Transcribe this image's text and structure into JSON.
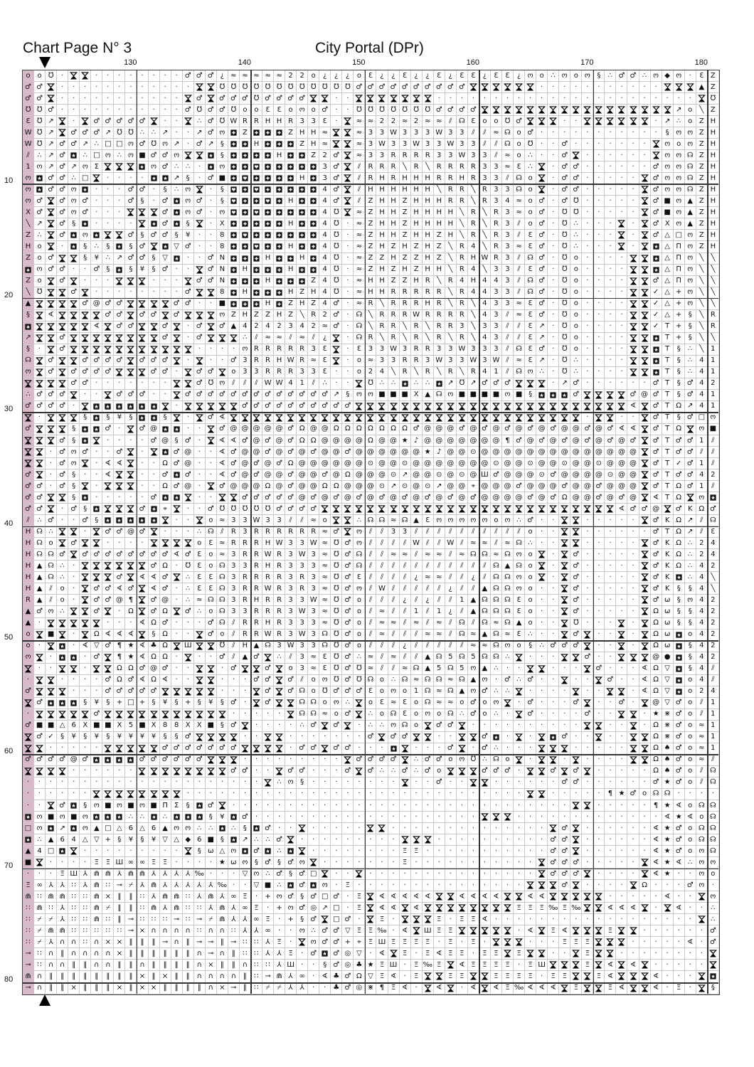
{
  "header": {
    "page_title": "Chart Page N° 3",
    "pattern_title": "City Portal (DPr)"
  },
  "colors": {
    "overlap_column": "#d8b9c7",
    "grid_line": "#c9c9c9",
    "major_line": "#333333"
  },
  "chart_data": {
    "type": "table",
    "column_labels": [
      130,
      140,
      150,
      160,
      170,
      180
    ],
    "row_labels": [
      10,
      20,
      30,
      40,
      50,
      60,
      70,
      80
    ],
    "center_markers": [
      "top-arrow",
      "bottom-arrow"
    ],
    "rows": [
      "oo℧·⧗⧗········♂♂♂¿≈≈≈≈≈22o¿¿¿oƐ¿¿Ɛ¿¿Ɛ¿ƐƐ¿ƐƐ¿ოo∴ოoო§∴♂♂∴ო◆ო·ƐZ",
      "♂♂⧗············⧗⧗℧℧℧℧℧℧℧℧℧℧℧℧♂♂♂♂♂♂♂♂♂♂⧗⧗⧗⧗⧗⧗···········⧗⧗⧗▲Z",
      "♂♂⧗···········⧗♂⧗♂♂♂℧♂♂♂♂⧗⧗··⧗⧗⧗⧗⧗⧗⧗·······················⧗℧4Z",
      "℧℧♂···········♂℧♂♂℧ooƐƐoოo♂··℧℧℧℧℧℧℧♂♂♂♂⧗⧗⧗⧗⧗⧗⧗⧗⧗⧗⧗⧗⧗⧗⧗⧗⧗↗o╲Z",
      "Ɛ℧↗⧗·⧗♂♂♂♂♂⧗··⧗∴♂℧WRRHHR33Ɛ·⧗≈≈22≈2≈≈⫽☊Ɛoo℧♂⧗⧗⧗··⧗⧗⧗⧗⧗⧗·↗∴oZH",
      "W℧↗⧗♂♂♂↗℧℧∴∴↗··↗♂ო⊞Z⊞⊞⊞ZHH≈⧗⧗≈33W333W33⫽⫽≈☊o♂···········§ოოZH",
      "W℧↗♂♂↗∴□□ო♂℧ო↗·♂↗§⊞⊞H⊞⊞⊞ZH≈⧗⧗≈3W33W33W33⫽⫽☊o℧··♂·······⧗ოoოZH",
      "⫽∴↗♂⊡∴□ო∴ო■♂♂ო⧗⧗⊡§⊞⊞⊞⊞H⊞⊞Z2♂⧗≈33RRRR33W33⫽≈o∴··♂⧗······⧗ოო☊ZH",
      "1ო↗♂↗ოΣ⧗⧗⧗⊡ო♂∴∴·⊡ო⊞⊞◘⊞⊞⊞⊞⊞3♂⧗⫽RRR╲R╲RRRR33≈Ɛ∴⧗·♂♂······♂ოო☊ZH",
      "ო⊡♂♂∴□⧗····⊡⊡↗§·♂■⊞◘⊞⊞⊞⊞H⊞3♂⧗⫽RHRHHHRRHR33⫽☊o⧗·♂♂·····⧗♂ოო☊ZH",
      "ო⊡♂♂ო⊡···♂♂·§∴ო⧗·§◘⊞◘⊞⊞⊞⊞⊞4♂⧗⫽HHHHHH╲RR╲R33☊o⧗·♂♂·····⧗♂ოო☊ZH",
      "ო♂⧗♂ო♂···♂§·♂⊡ო♂·§◘⊞⊞◘⊞H⊞⊞4♂⧗⫽ZHHZHHHRR╲R34≈o♂·♂℧·····⧗♂■ო▲ZH",
      "X♂⧗♂ო♂···⧗⧗⧗♂⊡ო♂·ო◘⊞◘⊞⊞⊞⊞⊞4℧⧗≈ZHHZHHHH╲R╲R3≈o♂·℧℧·····⧗♂■ო▲ZH",
      "╲↗⧗♂§⊡····⧗⊡♂⊡§⧗·X⊞⊞⊞⊞⊞H⊞⊞4℧·≈ZHHZHHHH╲R╲R3⫽o♂·℧∴···⧗·⧗♂Xო▲ZH",
      "Z∴⧗♂⊡ო⊡⧗⧗♂§♂♂§¥··8⊞◘⊞⊞⊞⊞⊞⊞4℧·≈ZHHZHHZH╲R╲R3⫽Ɛ♂·℧∴···⧗·⧗♂△□ოZH",
      "Ho⧗·⊡§∴§⊡§♂⧗⊡▽♂··8⊞⊞◘⊞⊞H⊞⊞4℧·≈ZHZHZHZ╲R4╲R3≈Ɛ♂·℧∴···⧗·⧗⊡△ΠოZH",
      "Zo♂⧗⧗§¥∴↗♂♂§▽⊡··♂N⊞⊞⊞H⊞⊞H⊞4℧·≈ZZHZZHZ╲RHWR3⫽☊♂·℧o····⧗⧗⊡△Πო╲╲",
      "⊡ო♂♂··♂§⊡§¥§♂··⧗♂N⊞H⊞⊞⊞H⊞⊞4℧·≈ZHZHZHH╲R4╲33⫽Ɛ♂·℧o····⧗⧗⊡△Πო╲╲",
      "Zo⧗♂⧗···⧗⧗⧗···⧗♂♂N⊞⊞⊞H⊞⊞⊞Z4℧·≈HHZZHR╲R4H443⫽☊♂·℧o····⧗⧗♂△Πო╲╲",
      "╲℧⧗⧗♂⧗········♂⧗⧗8⊞H⊞⊞⊞HZH4℧·≈HHRRRRR╲R4433⫽☊♂·℧o····⧗⧗✓△+ო╲╲",
      "▲⧗⧗⧗⧗♂@♂♂⧗⧗⧗⧗♂♂··■⊞⊞⊞H⊞ZHZ4♂·≈R╲RRRHR╲R╲433≈Ɛ♂·℧o····⧗⧗✓△+ო╲╲",
      "§⧗∢⧗⧗⧗⧗♂♂⧗♂♂⧗♂⧗⧗⧗ოZHZZHZ╲R2♂·☊╲RRRWRRRR╲43⫽≈Ɛ♂·℧o····⧗⧗✓△+§╲R",
      "⊡⧗⧗⧗⧗⧗∢⧗♂♂⧗⧗♂⧗·♂⧗♂▲4242342≈♂·☊╲RR╲R╲RR3╲33⫽⫽Ɛ↗·℧o····⧗⧗✓T+§╲R",
      "↗⧗⧗♂⧗⧗⧗⧗⧗⧗⧗⧗♂⧗·♂⧗⧗⧗∴⫽≈≈⫽≈⫽¿⧗·☊R╲R╲R╲R╲R╲43⫽⫽Ɛ↗·℧o····⧗⧗⊡T+§╲╲",
      "§·⧗♂⧗⧗⧗⧗⧗⧗⧗⧗⧗⧗⧗····ოRRRRR3Ɛ⧗·Ɛ33W3RR33W333⫽☊Ɛ♂·℧o····⧗⧗⊡T§∴╲1",
      "☊⧗♂⧗⧗♂♂♂♂⧗♂♂♂⧗·⧗··♂3RRHWR≈Ɛ⧗·o≈33RR3W33W3W⫽≈Ɛ↗·℧∴····⧗⧗⊡T§∴41",
      "ო⧗♂⧗♂♂♂♂⧗⧗⧗♂♂·⧗♂♂⧗o33RRR33Ɛ··o24╲R╲R╲R╲R41⫽☊ო∴·℧∴····⧗⧗⊡T§∴41",
      "⧗⧗⧗⧗♂♂·······⧗⧗♂℧ო⫽⫽⫽WW41⫽∴··⧗℧∴∴⊡∴∴⊡↗℧↗♂♂♂⧗⧗⧗·↗♂······♂T§♂42",
      "∴♂♂♂⧗··⧗♂♂♂··⧗♂♂♂♂♂♂♂♂♂♂♂♂♂↗§ოო■■■X▲☊ო■■■■ო■§⊡⊡⊡♂⧗⧗⧗⧗♂@♂T§♂41",
      "♂♂♂♂·⧗⊡⊡⊡⊡⊡⊡⧗·⧗⧗⧗⧗⧗♂♂♂♂♂♂♂♂♂♂⧗⧗⧗⧗⧗⧗⧗⧗⧗⧗⧗⧗⧗⧗⧗⧗⧗⧗⧗⧗⧗⧗⧗⧗∢⧗♂TΩ↗41",
      "⧗·⧗⧗⧗§⊡§¥§⊡⊡§⧗·⧗♂∢⧗⧗⧗⧗⧗⧗⧗⧗⧗⧗⧗⧗⧗⧗⧗⧗⧗⧗⧗⧗⧗⧗⧗⧗⧗⧗⧗⧗⧗⧗⧗·⧗⧗··⧗♂T§♂□ო",
      "♂⧗⧗⧗§⊡⊡♂·⧗♂@⊡⊡··⧗♂@@@@@♂Ω@@ΩΩΩΩΩΩΩ♂@@@♂@♂@♂@♂@♂@@♂@♂∢∢⧗♂TΩ⧗ო■",
      "⧗⧗⧗♂§⊡⧗····♂@§♂·⧗∢∢♂@♂@♂ΩΩ@@@@Ω@@★♪@@@@@@@¶♂@♂@♂@♂@♂@♂⧗♂T♂♂1⫽",
      "⧗⧗·♂ო♂··♂⧗·⧗⊡♂@··∢♂@@♂@♂@♂@@♂@@@@@@★♪@@⊙@@@@@@@@@@@@@@⧗♂T♂♂⫽⫽",
      "⧗⧗·♂ო⧗·∢∢⧗··Ω♂@··∢♂@♂@♂Ω@@@@@@⊙@@⊙@@@@@@@⊙@@⊙@@⊙@@⊙@@@⧗♂T✓♂1⫽",
      "♂⧗·♂§··∢⧗⧗··♂⊡♂··∢♂@♂@@♂@@♂@Ω@@@⊙↗@@⊙@⊙@Ш♂@@@⊙♂@@@@⊙@@⧗♂T♂♂42",
      "♂♂·♂§⧗·⧗⧗⧗··Ω♂@·⧗♂@@@Ω@♂@@ΩΩ@@@⊙↗⊙@⊙↗@@⌖@@@♂@@@♂@@♂@@@⧗♂TΩ♂1⫽",
      "♂♂⧗⧗§⊡·····♂⊡⊡⧗··⧗⧗♂♂♂♂♂@♂@♂@♂@♂@♂@♂@♂@♂@@@@♂@♂Ω@@♂@♂@⧗∢TΩ⧗ო⊡",
      "♂♂⧗·♂§⊡⧗⧗⧗♂⊡⌖⧗··♂℧℧℧℧℧♂♂♂♂⧗⧗⧗⧗⧗⧗⧗⧗⧗⧗⧗⧗⧗⧗⧗⧗⧗⧗⧗⧗⧗⧗⧗⧗⧗⧗∢♂♂@⧗♂KΩ♂▲☊",
      "⫽∴♂··♂§⊡⊡⊡⊡⊡⧗··⧗o≈33W33⫽⫽≈o⧗⧗∴☊☊≈☊▲Ɛოოოოოoო∴♂··⧗⧗·····⧗♂KΩ↗⫽☊",
      "H☊∴⧗⧗·⧗♂♂@♂⧗···∴☊⫽R3RRRRRR≈♂⧗ო⫽⫽33⫽⫽⫽⫽⫽⫽⫽⫽⫽⫽o··⧗⧗······♂TΩ↗⫽Ɛ",
      "H☊o⧗♂⧗⧗····⧗⧗⧗⧗oƐ≈RRRHW33W≈℧♂ო⫽⫽⫽⫽W⫽⫽W⫽≈≈⫽≈☊∴··⧗⧗·····⧗♂KΩ∴24",
      "H☊☊♂⧗♂♂♂♂♂♂♂♂∢♂Ɛo≈3RRWR3W3≈℧♂☊⫽⫽≈≈⫽≈≈⫽≈☊☊≈☊ოo⧗·⧗♂·····⧗♂KΩ∴24",
      "H▲☊∴·⧗⧗⧗⧗⧗⧗♂Ω·℧Ɛo☊33RHR333≈℧♂☊⫽⫽⫽⫽⫽⫽⫽⫽⫽⫽⫽☊▲☊o⧗·⧗♂·····⧗♂KΩ∴42",
      "H▲☊∴·⧗⧗⧗♂⧗∢∢♂⧗∴ƐƐ☊3RRRR3R3≈℧♂Ɛ⫽⫽⫽⫽¿≈≈⫽⫽¿⫽☊☊ოo⧗·⧗♂·····⧗♂K⊡∴4╲",
      "H▲⫽o·⧗♂♂∢♂⧗∢♂·∴ƐƐ☊3RRWR3R3≈℧♂ო⫽W⫽⫽⫽⫽⫽¿⫽⫽▲☊☊ოo··⧗♂·····⧗♂K§§4╲",
      "R▲⫽o·⧗♂♂@¶⧗♂@·∴≈☊☊3RHRR33W≈℧♂o⫽⫽⫽¿⫽¿⫽⫽1▲☊☊☊Ɛo··⧗♂·····⧗♂ω§ო42",
      "▲♂ო∴⧗⧗♂⧗·Ω⧗♂Ω⧗♂∴o☊33RRR3W3≈℧♂o⫽≈⫽⫽1⫽1¿⫽▲☊☊☊Ɛo··⧗♂·····⧗Ωω§§42",
      "▲·⧗⧗⧗⧗⧗···∢Ω♂···♂☊⫽RRHR333≈℧♂o⫽≈≈⫽≈⫽≈⫽☊⫽☊≈☊▲o··⧗℧···⧗·⧗Ωω§§42",
      "o⧗■⧗·⧗Ω∢∢∢⧗§Ω··⧗♂o⫽RRWR3W3☊℧♂o⫽≈⫽⫽⫽≈≈⫽☊≈▲☊≈Ɛ∴··⧗♂⧗··⧗·⧗Ωω⊡o42",
      "o·⧗⊡·∢▽♂¶★∢♣Ω⧗Ш⧗⧗℧⫽H▲☊3W33☊℧♂o⫽⫽⫽¿⫽⫽⫽⫽⫽≈≈☊ოo§∴♂♂♂⧗··⧗·⧗Ωω⊡§42",
      "ო⧗·⊡⊡·♂⧗¶★∢ΩΩ·⧗··♂⫽▲♂⧗∴⫽3≈Ɛ℧♂∴≈⫽≈⫽⫽▲☊5☊5☊☊∴⧗···⧗⧗♂··⧗⧗⧗@●⊡§42",
      "⧗··⧗⧗·⧗⧗ΩΩ♂@♂··⧗⧗·♂⧗⧗♂⧗o3≈Ɛ℧♂℧≈⫽⫽≈☊▲5☊5ო▲∴··⧗⧗···⧗♂···∢Ω▽⊡§4⫽",
      "·⧗⧗····♂Ω♂∢Ω∢··⧗⧗···♂♂⧗♂⫽oო℧♂℧☊o∴☊≈☊☊≈☊▲ო·♂∴♂··⧗··⧗♂··∢Ω▽⊡o4⫽",
      "♂⧗⧗⧗···♂♂♂♂♂⧗⧗⧗⧗⧗···⧗♂⧗♂☊o℧♂♂♂Ɛoოo1☊≈☊▲ო♂∴∴⧗····⧗··⧗⧗·∢Ω▽⊡o24",
      "⧗♂⊡⊡⊡§¥§+□+§¥§+§¥§♂·⧗♂⧗⧗☊☊oო∴⧗oƐ≈Ɛo☊≈≈o♂oო⧗·♂···♂⧗··♂·⧗@▽♂o⫽1",
      "·⧗⧗⧗⧗⧗♂⧗⧗⧗⧗⧗⧗⧗⧗⧗⧗⧗·····⧗☊☊≈o♂⧗∴o☊Ɛoოo☊∴♂o∴·⧗♂····♂··⧗⧗·★⋇♂o⫽1",
      "♂■■△6X■■X5■X88XX■§♂⧗····∴♂⧗♂⧗·∴∴ო☊o⧗♂♂⧗··········⧗⧗··⧗·Ω⋇♂o≈1",
      "⧗♂✓§¥§¥§¥¥¥¥§§♂⧗⧗⧗⧗··⧗⧗·······♂⧗♂♂⧗⧗··⧗⧗♂⊡·⧗·⧗⊡♂··⧗··⧗⧗Ω⋇♂o≈1",
      "⧗⧗·····⧗⧗⧗⧗⧗♂♂♂♂♂♂♂⧗⧗⧗⧗·♂♂⧗♂♂···⊡⧗···♂⧗·♂∴···⧗⧗⧗·····⧗⧗Ω♠♂o≈1",
      "♂♂♂♂@♂⊡⊡⊡⊡♂♂♂♂♂♂⧗⧗⧗·········⧗♂♂♂♂⧗∴♂♂oო℧∴☊o⧗·⧗⧗·⧗····⧗⧗Ω♠♂o≈⫽",
      "⧗⧗⧗⧗······⧗⧗⧗⧗⧗⧗⧗⧗♂♂··⧗♂♂···♂⧗♂∴∴♂∴♂o⧗⧗⧗♂♂♂·⧗⧗♂⧗♂⧗·····Ω♠♂o⫽☊",
      "·····················⧗∴ო§········⧗··♂··⧗⧗······♂♂······♂★♂o⫽☊",
      "······⧗⧗⧗⧗⧗⧗⧗⧗······························⧗⧗·····¶★♂o☊☊",
      "··⧗♂⊡§ო■ო■ო■ΠΣ§⊡♂⧗······························⧗⧗·····¶★∢o☊☊",
      "⊡ო■ო■ო⊡⊡⊡∴∴⊡∴⊡⊡⊡§¥⊡♂····················⧗⧗⧗·············∢★∢o☊☊",
      "□ო⊡↗⊡ო▲□△6△6▲ოო∴∴⊡∴§⊡♂··⧗·····⧗⧗··············⧗♂⧗······∢★♂o☊☊",
      "⊡∴▲64△▽+§¥§¥▽△◆6■§⊡↗∴∴♂⧗·········⧗⧗⧗··········♂♂⧗······∢★♂o☊☊",
      "▲4□⊡⧗·········⧗§ω△ო⊡♂⊡∴⊡⧗········ΞΞ···········♂♂⧗······∢★♂oო☊",
      "■⧗····ΞΞШ∞∞ΞΞ····★ωო§♂§♂ო⧗·······Ξ···········⧗♂♂♂·····⧗∢★∢∴ოო",
      "···ΞШ⅄⋒⋒⅄⋒⋒⅄⅄⅄⅄‰···▽ო∴♂§♂□⧗··⧗···············⧗♂♂♂⧗····⧗∢★··ოo",
      "Ξ∞⅄⅄∷⅄⋒∷⊸⌿⅄⋒⅄⅄⅄⅄⅄‰··▽■∴⊡♂⊡ო·Ξ···············⧗⧗⧗♂⧗····⧗Ω···♂ო",
      "⋒∷⋒⋒∷∷⋒×‖‖∷⅄⋒⋒∷⅄⋒⅄∞Ξ·+ო♂§♂□♂·Ξ⧗∢∢∢∢∢⧗⧗∢∢∢∢⧗⧗∢∢⧗⧗⧗⧗⧗·····∢··⧗ო",
      "∷⋒∷⅄∷∷⋒⌿‖‖∷⋒⅄⋒∷∷⅄⋒⅄∞Ξ·+ო♂◎↗□·Ξ⧗∢∢⧗∢⧗⧗⧗⧗⧗⧗⧗⧗ΞΞΞ‰Ξ‰⧗⧗∢∢∢⧗·⧗∢··∴",
      "∷⌿⌿⅄∷∷⋒∷‖⊸∷∷∷⊸∷⊸⌿⋒⅄⅄∞Ξ·+§♂⧗□♂·⧗Ξ·⧗⧗⧗Ξ·ΞΞ∢··················⧗∴",
      "∷⌿⋒⋒∷∷∷∷∷⊸×∩∩∩∩∷∩∩∷⅄⅄∞··ო∴♂♂▽ΞΞ‰·∢⧗ШΞΞ⧗⧗⧗⧗⧗·∢⧗Ξ∢⧗⧗⧗Ξ⧗⧗······♂",
      "∷⌿⅄∩∩∷∩××‖‖‖⊸∩‖⊸⊸‖⊸∷∷⅄Ξ·⧗ო♂♂+⌖ΞШΞΞΞΞ·Ξ·Ξ·⧗⧗⧗···ΞΞΞ⧗⧗⧗·····∢·♂",
      "⊸∷∩‖∩∩∩∩×‖‖‖‖‖‖∩⊸∩‖∷∷⅄⅄Ξ·♂⊡♂◎▽·∢⧗Ξ·Ξ∢ΞΞ·ΞΞ⧗Ξ⧗⧗··⧗Ξ⧗⧗········⧗",
      "⊸∷∩∩‖‖∩∩‖‖∩‖‖‖‖∩×‖‖∩∷∷⅄Ш··§♂◎♣★ΞШ·Ξ‰Ξ⧗∢ΞΞΞΞ·ΞШ⧗⧗⧗Ξ⧗∢⧗∢⧗·····⧗",
      "⋒∩‖‖‖‖‖‖‖‖×‖×‖‖∩∩∩∩‖∷⊸⋒⅄∞·∢♣♂Ω▽Ξ∢·Ξ⧗⧗ΞΞ⧗⧗ΞΞΞΞ·ΞΞ⧗⧗Ξ∢⧗⧗⧗∢···⧗⊡",
      "⊸∩‖‖×‖‖‖×‖××‖‖‖‖∩×⊸‖∷⌿⌿⅄⅄··♣♂◎⋇¶Ξ∢·⧗∢⧗·∢⧗∢Ξ‰∢∢∢⧗Ξ⧗⧗Ξ∢⧗⧗∢·Ξ·⧗§"
    ]
  }
}
